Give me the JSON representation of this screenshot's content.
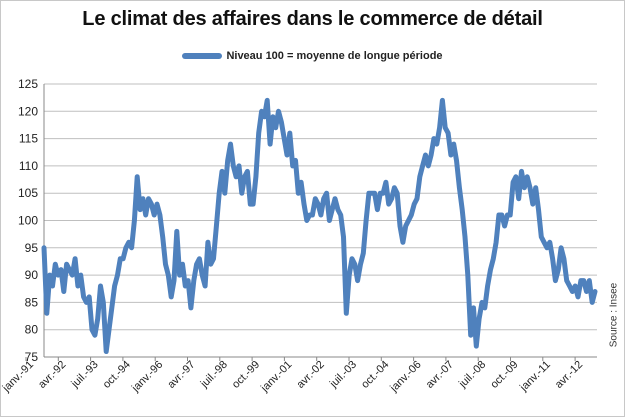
{
  "title": "Le climat des affaires dans le commerce de détail",
  "source": "Source : Insee",
  "chart_data": {
    "type": "line",
    "title": "Le climat des affaires dans le commerce de détail",
    "xlabel": "",
    "ylabel": "",
    "ylim": [
      75,
      125
    ],
    "yticks": [
      75,
      80,
      85,
      90,
      95,
      100,
      105,
      110,
      115,
      120,
      125
    ],
    "grid": "horizontal",
    "legend_placement": "top-center",
    "line_color": "#4f81bd",
    "x_tick_labels": [
      "janv.-91",
      "avr.-92",
      "juil.-93",
      "oct.-94",
      "janv.-96",
      "avr.-97",
      "juil.-98",
      "oct.-99",
      "janv.-01",
      "avr.-02",
      "juil.-03",
      "oct.-04",
      "janv.-06",
      "avr.-07",
      "juil.-08",
      "oct.-09",
      "janv.-11",
      "avr.-12"
    ],
    "series": [
      {
        "name": "Niveau 100 = moyenne de longue période",
        "values": [
          95,
          83,
          90,
          88,
          92,
          90,
          91,
          87,
          92,
          91,
          90,
          93,
          88,
          90,
          86,
          85,
          86,
          80,
          79,
          82,
          88,
          85,
          76,
          80,
          84,
          88,
          90,
          93,
          93,
          95,
          96,
          95,
          100,
          108,
          102,
          104,
          101,
          104,
          103,
          101,
          103,
          101,
          97,
          92,
          90,
          86,
          89,
          98,
          90,
          92,
          88,
          89,
          84,
          89,
          92,
          93,
          90,
          88,
          96,
          92,
          93,
          99,
          105,
          109,
          105,
          111,
          114,
          110,
          108,
          110,
          105,
          108,
          109,
          103,
          103,
          108,
          116,
          120,
          119,
          122,
          114,
          119,
          117,
          120,
          118,
          115,
          112,
          116,
          110,
          111,
          105,
          107,
          103,
          100,
          101,
          101,
          104,
          103,
          101,
          104,
          105,
          100,
          102,
          104,
          102,
          101,
          97,
          83,
          90,
          93,
          92,
          89,
          92,
          94,
          100,
          105,
          105,
          105,
          102,
          105,
          105,
          107,
          103,
          104,
          106,
          105,
          99,
          96,
          99,
          100,
          101,
          103,
          104,
          108,
          110,
          112,
          110,
          112,
          115,
          114,
          117,
          122,
          117,
          116,
          112,
          114,
          111,
          106,
          102,
          97,
          90,
          79,
          84,
          77,
          82,
          85,
          84,
          88,
          91,
          93,
          96,
          101,
          101,
          99,
          101,
          101,
          107,
          108,
          104,
          109,
          106,
          108,
          106,
          103,
          106,
          102,
          97,
          96,
          95,
          96,
          93,
          89,
          91,
          95,
          93,
          89,
          88,
          87,
          88,
          86,
          89,
          89,
          87,
          89,
          85,
          87
        ]
      }
    ]
  }
}
